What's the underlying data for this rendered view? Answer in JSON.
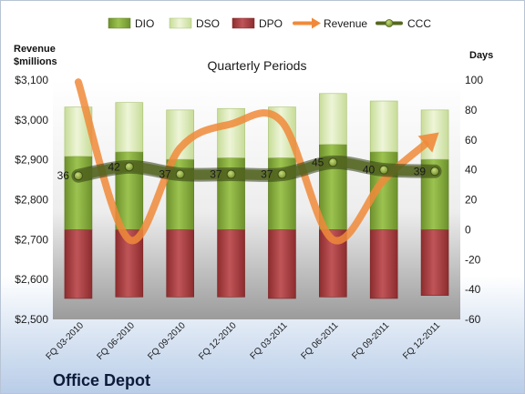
{
  "chart_data": {
    "type": "bar",
    "title": "Quarterly Periods",
    "brand": "Office Depot",
    "y_left_label_line1": "Revenue",
    "y_left_label_line2": "$millions",
    "y_right_label": "Days",
    "y_left_ticks": [
      "$2,500",
      "$2,600",
      "$2,700",
      "$2,800",
      "$2,900",
      "$3,000",
      "$3,100"
    ],
    "y_left_range": [
      2500,
      3100
    ],
    "y_right_ticks": [
      "-60",
      "-40",
      "-20",
      "0",
      "20",
      "40",
      "60",
      "80",
      "100"
    ],
    "y_right_range": [
      -60,
      100
    ],
    "categories": [
      "FQ 03-2010",
      "FQ 06-2010",
      "FQ 09-2010",
      "FQ 12-2010",
      "FQ 03-2011",
      "FQ 06-2011",
      "FQ 09-2011",
      "FQ 12-2011"
    ],
    "legend": [
      "DIO",
      "DSO",
      "DPO",
      "Revenue",
      "CCC"
    ],
    "legend_position": "top",
    "series": [
      {
        "name": "DIO",
        "axis": "right",
        "color": "#7fa33a",
        "values": [
          49,
          52,
          47,
          48,
          48,
          57,
          52,
          47
        ]
      },
      {
        "name": "DSO",
        "axis": "right",
        "color": "#d8e8b0",
        "values": [
          33,
          33,
          33,
          33,
          34,
          34,
          34,
          33
        ]
      },
      {
        "name": "DPO",
        "axis": "right",
        "color": "#a43a3c",
        "values": [
          -46,
          -45,
          -45,
          -45,
          -46,
          -45,
          -46,
          -44
        ]
      },
      {
        "name": "Revenue",
        "axis": "left",
        "color": "#f08a3a",
        "values": [
          3095,
          2700,
          2930,
          2990,
          2995,
          2700,
          2850,
          2960
        ]
      },
      {
        "name": "CCC",
        "axis": "right",
        "color": "#55681f",
        "values": [
          36,
          42,
          37,
          37,
          37,
          45,
          40,
          39
        ]
      }
    ],
    "data_labels": [
      "36",
      "42",
      "37",
      "37",
      "37",
      "45",
      "40",
      "39"
    ],
    "grid": false
  }
}
